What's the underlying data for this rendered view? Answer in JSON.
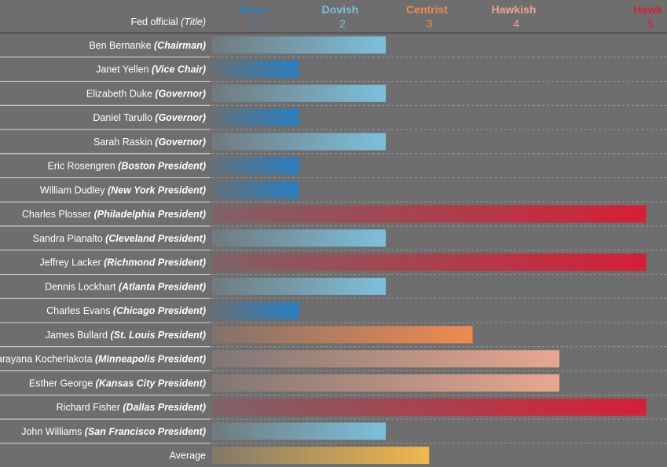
{
  "chart_data": {
    "type": "bar",
    "orientation": "horizontal",
    "header_label": "Fed official",
    "header_label_title": "Title",
    "scale": [
      {
        "value": 1,
        "label": "Dove",
        "color": "#2a7fc0"
      },
      {
        "value": 2,
        "label": "Dovish",
        "color": "#7cc0dc"
      },
      {
        "value": 3,
        "label": "Centrist",
        "color": "#f08a50"
      },
      {
        "value": 4,
        "label": "Hawkish",
        "color": "#e8a78f"
      },
      {
        "value": 5,
        "label": "Hawk",
        "color": "#d61f36"
      }
    ],
    "xlim": [
      0,
      5
    ],
    "officials": [
      {
        "name": "Ben Bernanke",
        "title": "Chairman",
        "value": 2
      },
      {
        "name": "Janet Yellen",
        "title": "Vice Chair",
        "value": 1
      },
      {
        "name": "Elizabeth Duke",
        "title": "Governor",
        "value": 2
      },
      {
        "name": "Daniel Tarullo",
        "title": "Governor",
        "value": 1
      },
      {
        "name": "Sarah Raskin",
        "title": "Governor",
        "value": 2
      },
      {
        "name": "Eric Rosengren",
        "title": "Boston President",
        "value": 1
      },
      {
        "name": "William Dudley",
        "title": "New York President",
        "value": 1
      },
      {
        "name": "Charles Plosser",
        "title": "Philadelphia President",
        "value": 5
      },
      {
        "name": "Sandra Pianalto",
        "title": "Cleveland President",
        "value": 2
      },
      {
        "name": "Jeffrey Lacker",
        "title": "Richmond President",
        "value": 5
      },
      {
        "name": "Dennis Lockhart",
        "title": "Atlanta President",
        "value": 2
      },
      {
        "name": "Charles Evans",
        "title": "Chicago President",
        "value": 1
      },
      {
        "name": "James Bullard",
        "title": "St. Louis President",
        "value": 3
      },
      {
        "name": "Narayana Kocherlakota",
        "title": "Minneapolis President",
        "value": 4
      },
      {
        "name": "Esther George",
        "title": "Kansas City President",
        "value": 4
      },
      {
        "name": "Richard Fisher",
        "title": "Dallas President",
        "value": 5
      },
      {
        "name": "John Williams",
        "title": "San Francisco President",
        "value": 2
      }
    ],
    "average": {
      "label": "Average",
      "value": 2.5,
      "color": "#f2b84b"
    }
  }
}
